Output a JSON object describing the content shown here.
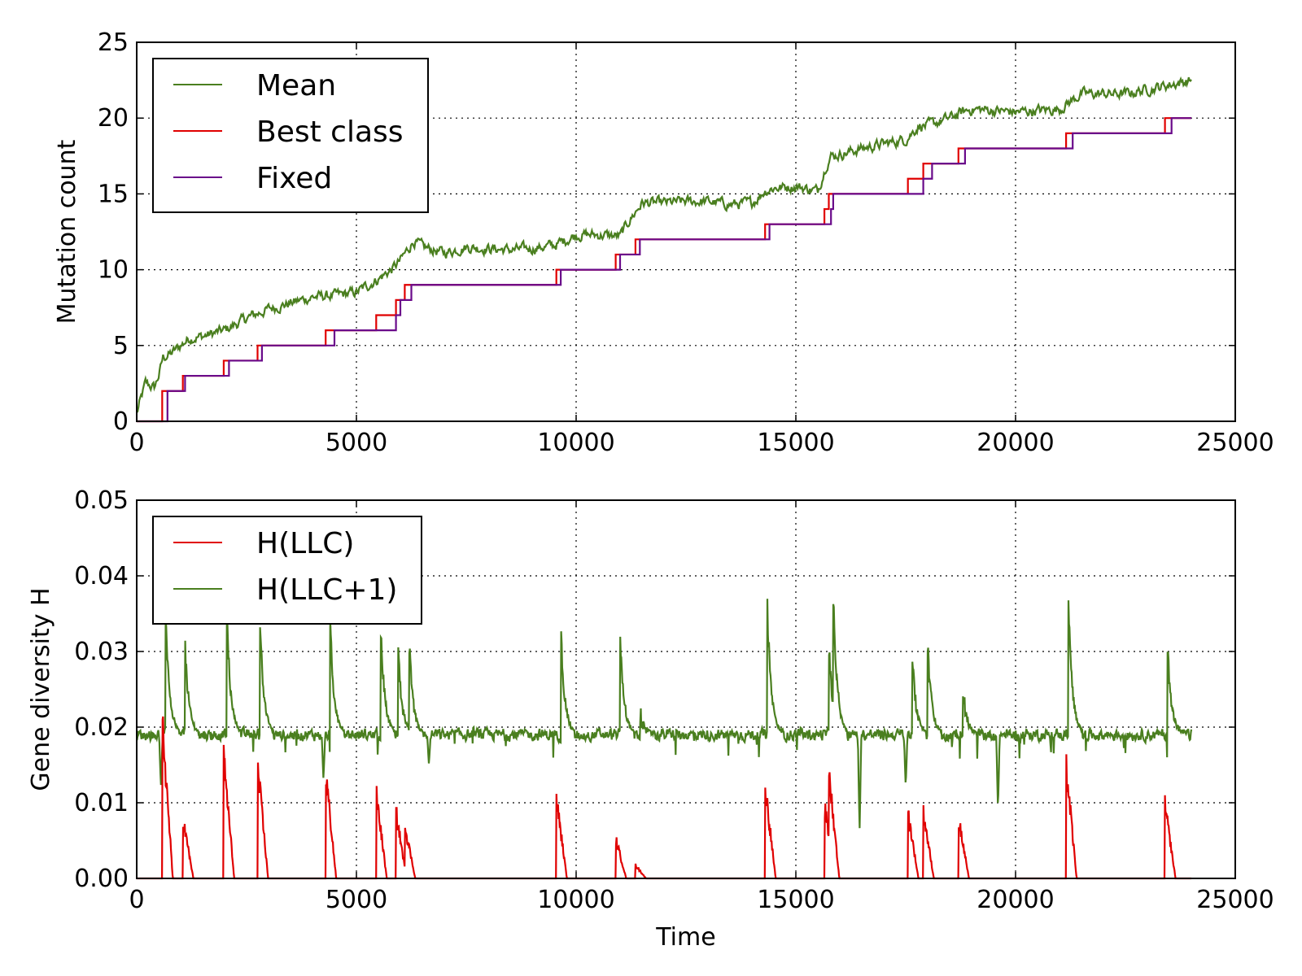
{
  "chart_data": [
    {
      "type": "line",
      "title": "",
      "xlabel": "",
      "ylabel": "Mutation count",
      "xlim": [
        0,
        25000
      ],
      "ylim": [
        0,
        25
      ],
      "xticks": [
        "0",
        "5000",
        "10000",
        "15000",
        "20000",
        "25000"
      ],
      "yticks": [
        "0",
        "5",
        "10",
        "15",
        "20",
        "25"
      ],
      "grid": true,
      "legend_position": "top-left",
      "colors": {
        "Mean": "#4a7f1f",
        "Best class": "#e00000",
        "Fixed": "#6a0a8a"
      },
      "series": [
        {
          "name": "Mean",
          "x": [
            0,
            200,
            400,
            500,
            600,
            800,
            1000,
            1200,
            1500,
            2000,
            2500,
            3000,
            3500,
            4000,
            4500,
            5000,
            5500,
            5800,
            6000,
            6300,
            6500,
            7000,
            7500,
            8000,
            8500,
            9000,
            9500,
            9800,
            10000,
            10500,
            11000,
            11200,
            11500,
            12000,
            12500,
            13000,
            13500,
            14000,
            14300,
            14500,
            15000,
            15500,
            15700,
            15800,
            16000,
            16500,
            17000,
            17500,
            17800,
            18000,
            18500,
            18800,
            19000,
            19500,
            20000,
            20500,
            21000,
            21200,
            21500,
            22000,
            22500,
            23000,
            23500,
            24000
          ],
          "values": [
            0.5,
            2.5,
            2.2,
            3.0,
            4.2,
            4.5,
            5.0,
            5.5,
            5.6,
            6.0,
            6.8,
            7.4,
            7.8,
            8.2,
            8.3,
            8.5,
            9.4,
            10.0,
            10.6,
            11.9,
            11.5,
            11.1,
            11.5,
            11.4,
            11.3,
            11.4,
            11.6,
            12.0,
            12.3,
            12.3,
            12.2,
            13.2,
            14.4,
            14.4,
            14.5,
            14.5,
            14.3,
            14.4,
            15.2,
            15.4,
            15.5,
            15.2,
            17.0,
            17.5,
            17.6,
            18.0,
            18.3,
            18.6,
            19.5,
            19.5,
            20.0,
            20.4,
            20.6,
            20.5,
            20.4,
            20.5,
            20.6,
            21.0,
            21.6,
            21.6,
            21.6,
            21.9,
            22.2,
            22.5
          ]
        },
        {
          "name": "Best class",
          "x": [
            0,
            550,
            580,
            1050,
            1980,
            2750,
            4300,
            5450,
            5900,
            6100,
            9550,
            10900,
            11350,
            14300,
            15650,
            15750,
            17550,
            17900,
            18700,
            21150,
            23400,
            24000
          ],
          "values": [
            0,
            0,
            2,
            3,
            4,
            5,
            6,
            7,
            8,
            9,
            10,
            11,
            12,
            13,
            14,
            15,
            16,
            17,
            18,
            19,
            20,
            20
          ]
        },
        {
          "name": "Fixed",
          "x": [
            0,
            650,
            700,
            1100,
            2100,
            2850,
            4500,
            5900,
            6000,
            6250,
            9650,
            11000,
            11450,
            14400,
            15800,
            15850,
            17900,
            18100,
            18850,
            21300,
            23550,
            24000
          ],
          "values": [
            0,
            0,
            2,
            3,
            4,
            5,
            6,
            7,
            8,
            9,
            10,
            11,
            12,
            13,
            14,
            15,
            16,
            17,
            18,
            19,
            20,
            20
          ]
        }
      ]
    },
    {
      "type": "line",
      "title": "",
      "xlabel": "Time",
      "ylabel": "Gene diversity H",
      "xlim": [
        0,
        25000
      ],
      "ylim": [
        0,
        0.05
      ],
      "xticks": [
        "0",
        "5000",
        "10000",
        "15000",
        "20000",
        "25000"
      ],
      "yticks": [
        "0.00",
        "0.01",
        "0.02",
        "0.03",
        "0.04",
        "0.05"
      ],
      "grid": true,
      "legend_position": "top-left",
      "colors": {
        "H(LLC)": "#e00000",
        "H(LLC+1)": "#4a7f1f"
      },
      "baseline": 0.019,
      "series": [
        {
          "name": "H(LLC)",
          "peaks": [
            [
              580,
              0.024
            ],
            [
              1050,
              0.009
            ],
            [
              1980,
              0.018
            ],
            [
              2750,
              0.017
            ],
            [
              4300,
              0.016
            ],
            [
              5450,
              0.013
            ],
            [
              5900,
              0.01
            ],
            [
              6100,
              0.008
            ],
            [
              9550,
              0.012
            ],
            [
              10900,
              0.006
            ],
            [
              11350,
              0.002
            ],
            [
              14300,
              0.014
            ],
            [
              15650,
              0.011
            ],
            [
              15750,
              0.016
            ],
            [
              17550,
              0.01
            ],
            [
              17900,
              0.01
            ],
            [
              18700,
              0.009
            ],
            [
              21150,
              0.017
            ],
            [
              23400,
              0.011
            ]
          ]
        },
        {
          "name": "H(LLC+1)",
          "peaks": [
            [
              650,
              0.037
            ],
            [
              1100,
              0.031
            ],
            [
              2050,
              0.035
            ],
            [
              2800,
              0.035
            ],
            [
              4400,
              0.034
            ],
            [
              5550,
              0.034
            ],
            [
              5950,
              0.03
            ],
            [
              6200,
              0.031
            ],
            [
              9650,
              0.033
            ],
            [
              11000,
              0.032
            ],
            [
              11450,
              0.022
            ],
            [
              14350,
              0.036
            ],
            [
              15750,
              0.031
            ],
            [
              15850,
              0.038
            ],
            [
              17650,
              0.029
            ],
            [
              18000,
              0.031
            ],
            [
              18800,
              0.025
            ],
            [
              21200,
              0.037
            ],
            [
              23450,
              0.032
            ]
          ],
          "dips": [
            [
              550,
              0.012
            ],
            [
              4250,
              0.013
            ],
            [
              6650,
              0.015
            ],
            [
              16450,
              0.006
            ],
            [
              19600,
              0.009
            ],
            [
              17500,
              0.012
            ]
          ]
        }
      ]
    }
  ]
}
